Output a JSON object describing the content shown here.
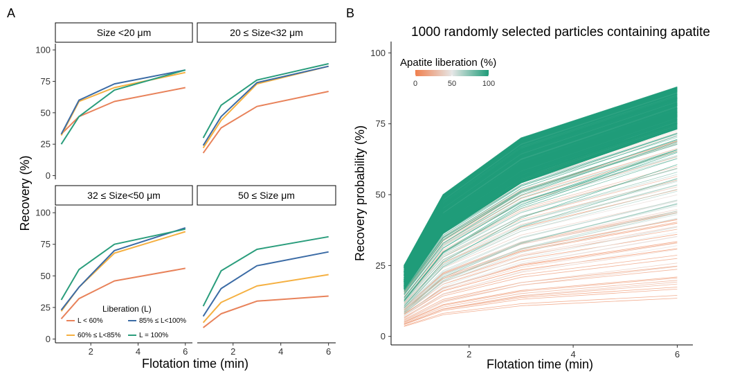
{
  "panel_a_label": "A",
  "panel_b_label": "B",
  "chart_data": [
    {
      "type": "line",
      "panel": "A",
      "xlabel": "Flotation time (min)",
      "ylabel": "Recovery (%)",
      "x": [
        0.75,
        1.5,
        3,
        6
      ],
      "xticks": [
        "2",
        "4",
        "6"
      ],
      "yticks": [
        "0",
        "25",
        "50",
        "75",
        "100"
      ],
      "xlim": [
        0.5,
        6.3
      ],
      "ylim": [
        -3,
        105
      ],
      "legend": {
        "title": "Liberation (L)",
        "position": "bottom-left (inside facet 3)",
        "entries": [
          "L < 60%",
          "85% ≤ L<100%",
          "60% ≤ L<85%",
          "L = 100%"
        ]
      },
      "series_colors": {
        "L < 60%": "#E8825A",
        "60% ≤ L<85%": "#F5B041",
        "85% ≤ L<100%": "#3B6BA5",
        "L = 100%": "#2A9D7C"
      },
      "facets": [
        {
          "strip": "Size <20 μm",
          "series": [
            {
              "name": "L < 60%",
              "values": [
                33,
                47,
                59,
                70
              ]
            },
            {
              "name": "60% ≤ L<85%",
              "values": [
                32,
                59,
                70,
                82
              ]
            },
            {
              "name": "85% ≤ L<100%",
              "values": [
                33,
                60,
                73,
                84
              ]
            },
            {
              "name": "L = 100%",
              "values": [
                25,
                47,
                68,
                84
              ]
            }
          ]
        },
        {
          "strip": "20 ≤ Size<32 μm",
          "series": [
            {
              "name": "L < 60%",
              "values": [
                18,
                38,
                55,
                67
              ]
            },
            {
              "name": "60% ≤ L<85%",
              "values": [
                22,
                44,
                73,
                87
              ]
            },
            {
              "name": "85% ≤ L<100%",
              "values": [
                24,
                47,
                74,
                87
              ]
            },
            {
              "name": "L = 100%",
              "values": [
                30,
                56,
                76,
                89
              ]
            }
          ]
        },
        {
          "strip": "32 ≤ Size<50 μm",
          "series": [
            {
              "name": "L < 60%",
              "values": [
                16,
                32,
                46,
                56
              ]
            },
            {
              "name": "60% ≤ L<85%",
              "values": [
                22,
                41,
                68,
                85
              ]
            },
            {
              "name": "85% ≤ L<100%",
              "values": [
                23,
                41,
                70,
                88
              ]
            },
            {
              "name": "L = 100%",
              "values": [
                31,
                55,
                75,
                87
              ]
            }
          ]
        },
        {
          "strip": "50 ≤ Size μm",
          "series": [
            {
              "name": "L < 60%",
              "values": [
                9,
                20,
                30,
                34
              ]
            },
            {
              "name": "60% ≤ L<85%",
              "values": [
                13,
                29,
                42,
                51
              ]
            },
            {
              "name": "85% ≤ L<100%",
              "values": [
                18,
                40,
                58,
                69
              ]
            },
            {
              "name": "L = 100%",
              "values": [
                26,
                54,
                71,
                81
              ]
            }
          ]
        }
      ]
    },
    {
      "type": "line",
      "panel": "B",
      "title": "1000 randomly selected particles containing apatite",
      "xlabel": "Flotation time (min)",
      "ylabel": "Recovery probability (%)",
      "x": [
        0.75,
        1.5,
        3,
        6
      ],
      "xticks": [
        "2",
        "4",
        "6"
      ],
      "yticks": [
        "0",
        "25",
        "50",
        "75",
        "100"
      ],
      "xlim": [
        0.5,
        6.3
      ],
      "ylim": [
        -3,
        104
      ],
      "colorbar": {
        "title": "Apatite liberation (%)",
        "position": "top-left",
        "labels": [
          "0",
          "50",
          "100"
        ],
        "colors": [
          "#F07F4E",
          "#E6E6E6",
          "#1F9C79"
        ]
      },
      "envelope": {
        "liberation_100_upper": [
          25,
          50,
          70,
          88
        ],
        "liberation_100_lower": [
          12,
          30,
          48,
          70
        ],
        "liberation_0_lower": [
          2,
          4,
          5,
          5
        ]
      }
    }
  ]
}
